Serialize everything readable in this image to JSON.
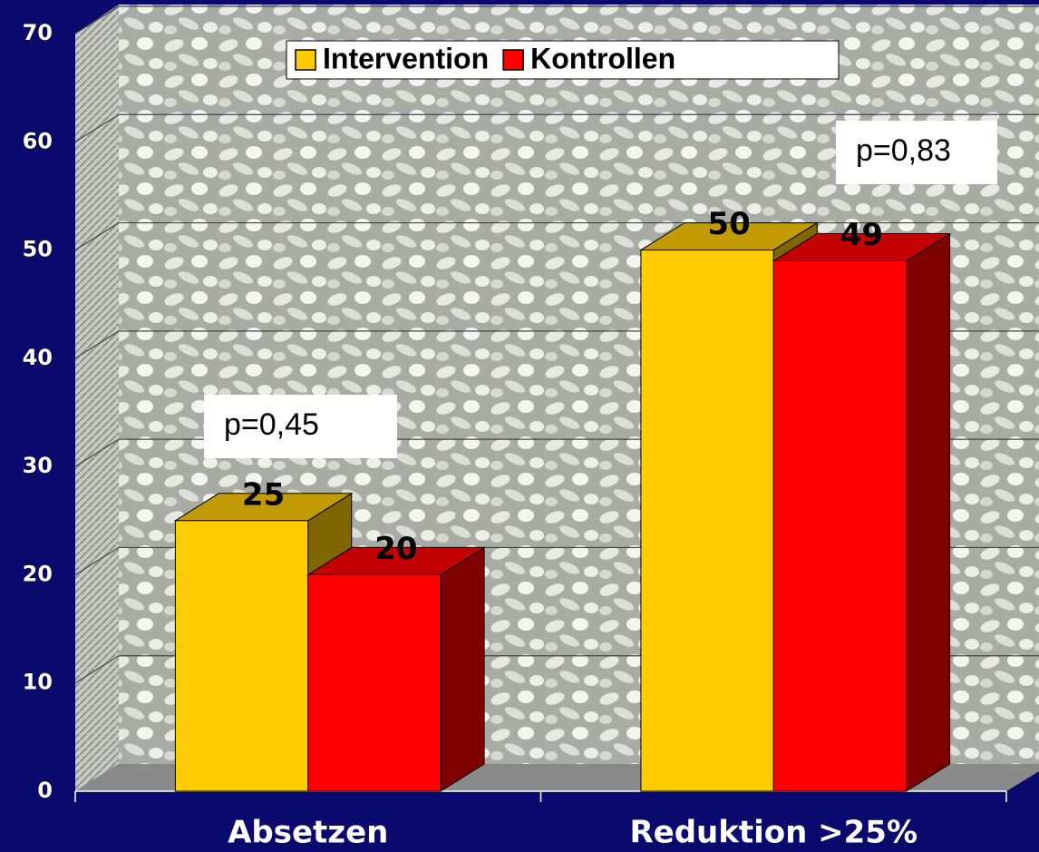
{
  "chart_data": {
    "type": "bar3d",
    "categories": [
      "Absetzen",
      "Reduktion >25%"
    ],
    "series": [
      {
        "name": "Intervention",
        "color": "#ffcc00",
        "values": [
          25,
          50
        ]
      },
      {
        "name": "Kontrollen",
        "color": "#ff0000",
        "values": [
          20,
          49
        ]
      }
    ],
    "ylim": [
      0,
      70
    ],
    "yticks": [
      0,
      10,
      20,
      30,
      40,
      50,
      60,
      70
    ],
    "grid": true,
    "legend": "top",
    "annotations": [
      "p=0,45",
      "p=0,83"
    ]
  }
}
